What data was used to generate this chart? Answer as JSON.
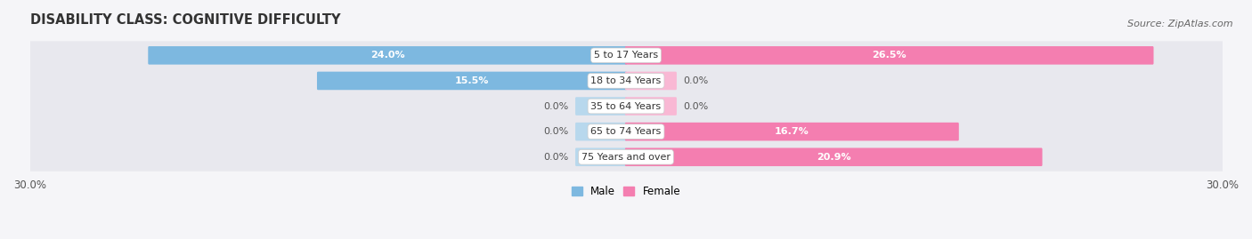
{
  "title": "DISABILITY CLASS: COGNITIVE DIFFICULTY",
  "source": "Source: ZipAtlas.com",
  "categories": [
    "5 to 17 Years",
    "18 to 34 Years",
    "35 to 64 Years",
    "65 to 74 Years",
    "75 Years and over"
  ],
  "male_values": [
    24.0,
    15.5,
    0.0,
    0.0,
    0.0
  ],
  "female_values": [
    26.5,
    0.0,
    0.0,
    16.7,
    20.9
  ],
  "x_max": 30.0,
  "male_color": "#7db8e0",
  "female_color": "#f47eb0",
  "male_stub_color": "#b8d8ed",
  "female_stub_color": "#f9b8d4",
  "male_label": "Male",
  "female_label": "Female",
  "bar_height": 0.62,
  "row_bg_color": "#e8e8ee",
  "title_fontsize": 10.5,
  "label_fontsize": 8.0,
  "cat_fontsize": 8.0,
  "axis_label_fontsize": 8.5,
  "source_fontsize": 8.0,
  "stub_size": 2.5
}
